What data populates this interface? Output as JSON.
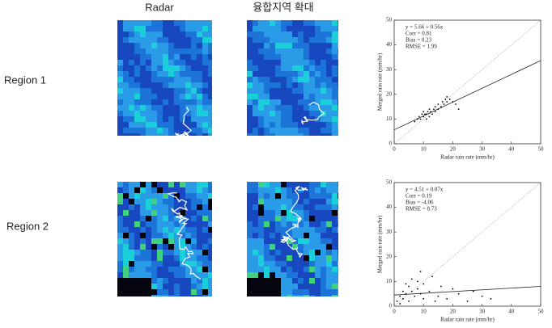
{
  "headers": {
    "radar": "Radar",
    "merged": "융합지역 확대"
  },
  "regions": [
    "Region 1",
    "Region 2"
  ],
  "chart_data": [
    {
      "type": "scatter",
      "xlabel": "Radar rain rate (mm/hr)",
      "ylabel": "Merged rain rate (mm/hr)",
      "annotations": [
        "y =   5.66 + 0.56x",
        "Corr =  0.81",
        "Bias =  0.23",
        "RMSE =  1.99"
      ],
      "fit": {
        "intercept": 5.66,
        "slope": 0.56
      },
      "x": [
        7,
        8,
        8.5,
        9,
        9.5,
        10,
        10,
        10.5,
        11,
        11,
        11.5,
        12,
        12,
        12.5,
        13,
        13.5,
        14,
        14,
        15,
        15,
        16,
        16.5,
        17,
        17.5,
        18,
        18,
        19,
        20,
        21,
        22
      ],
      "values": [
        9,
        10,
        11,
        10,
        12,
        11,
        13,
        12,
        10,
        12,
        13,
        11,
        14,
        13,
        12,
        14,
        13,
        15,
        14,
        16,
        15,
        17,
        16,
        18,
        17,
        19,
        18,
        17,
        16,
        14
      ],
      "color": "#000000",
      "xlim": [
        0,
        50
      ],
      "ylim": [
        0,
        50
      ],
      "xticks": [
        0,
        10,
        20,
        30,
        40,
        50
      ],
      "yticks": [
        0,
        10,
        20,
        30,
        40,
        50
      ]
    },
    {
      "type": "scatter",
      "xlabel": "Radar rain rate (mm/hr)",
      "ylabel": "Merged rain rate (mm/hr)",
      "annotations": [
        "y =   4.51 + 0.07x",
        "Corr =  0.19",
        "Bias =  -4.06",
        "RMSE =  8.73"
      ],
      "fit": {
        "intercept": 4.51,
        "slope": 0.07
      },
      "x": [
        1,
        2,
        3,
        3,
        4,
        5,
        5,
        6,
        7,
        8,
        8,
        9,
        10,
        10,
        12,
        13,
        15,
        16,
        18,
        20,
        22,
        25,
        27,
        30,
        33,
        2,
        4,
        6,
        9,
        14
      ],
      "values": [
        2,
        4,
        3,
        6,
        5,
        2,
        8,
        6,
        4,
        7,
        10,
        5,
        3,
        9,
        6,
        12,
        4,
        8,
        3,
        7,
        5,
        2,
        6,
        4,
        3,
        1,
        9,
        11,
        14,
        2
      ],
      "color": "#000000",
      "xlim": [
        0,
        50
      ],
      "ylim": [
        0,
        50
      ],
      "xticks": [
        0,
        10,
        20,
        30,
        40,
        50
      ],
      "yticks": [
        0,
        10,
        20,
        30,
        40,
        50
      ]
    }
  ]
}
